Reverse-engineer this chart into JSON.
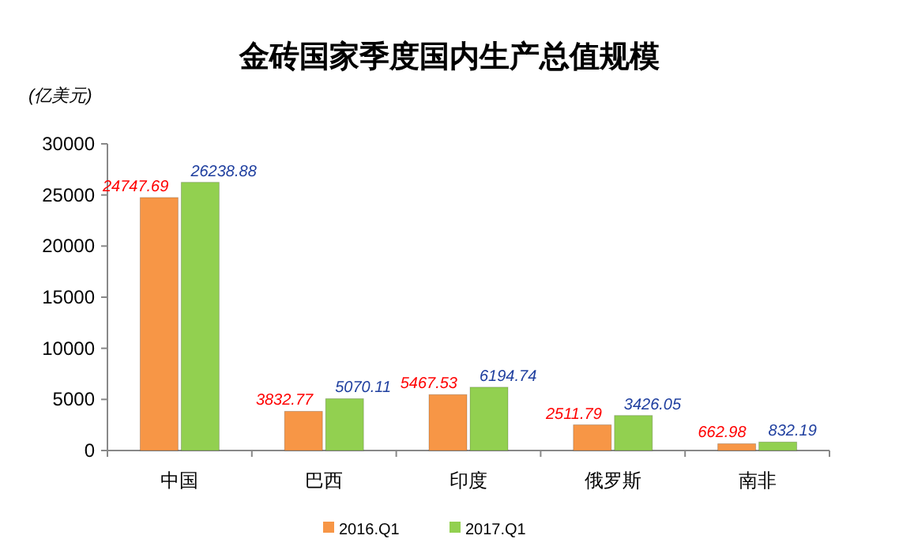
{
  "chart_data": {
    "type": "bar",
    "title": "金砖国家季度国内生产总值规模",
    "ylabel": "(亿美元)",
    "categories": [
      "中国",
      "巴西",
      "印度",
      "俄罗斯",
      "南非"
    ],
    "series": [
      {
        "name": "2016.Q1",
        "color": "#f79646",
        "values": [
          24747.69,
          3832.77,
          5467.53,
          2511.79,
          662.98
        ]
      },
      {
        "name": "2017.Q1",
        "color": "#92d050",
        "values": [
          26238.88,
          5070.11,
          6194.74,
          3426.05,
          832.19
        ]
      }
    ],
    "ylim": [
      0,
      30000
    ],
    "yticks": [
      0,
      5000,
      10000,
      15000,
      20000,
      25000,
      30000
    ],
    "data_labels": true,
    "legend": "bottom",
    "grid": false
  }
}
